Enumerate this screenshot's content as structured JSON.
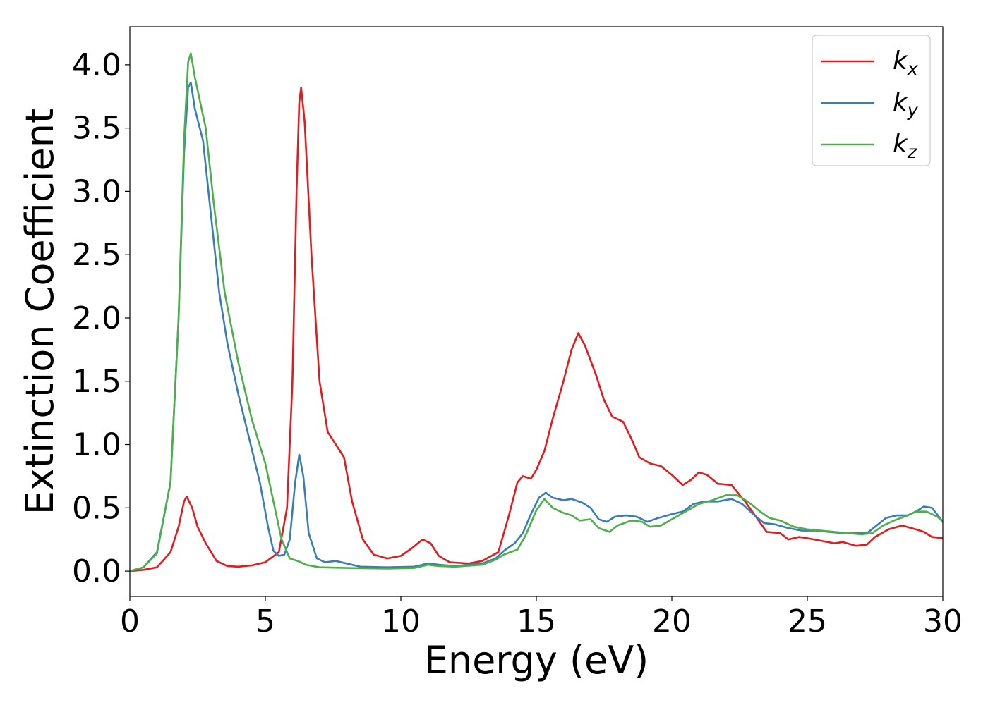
{
  "chart_data": {
    "type": "line",
    "title": "",
    "xlabel": "Energy (eV)",
    "ylabel": "Extinction Coefficient",
    "xlim": [
      0,
      30
    ],
    "ylim": [
      -0.2,
      4.3
    ],
    "xticks": [
      0,
      5,
      10,
      15,
      20,
      25,
      30
    ],
    "yticks": [
      0.0,
      0.5,
      1.0,
      1.5,
      2.0,
      2.5,
      3.0,
      3.5,
      4.0
    ],
    "xtick_labels": [
      "0",
      "5",
      "10",
      "15",
      "20",
      "25",
      "30"
    ],
    "ytick_labels": [
      "0.0",
      "0.5",
      "1.0",
      "1.5",
      "2.0",
      "2.5",
      "3.0",
      "3.5",
      "4.0"
    ],
    "grid": false,
    "legend_position": "top-right",
    "series": [
      {
        "name": "kx",
        "label_base": "k",
        "label_sub": "x",
        "color": "#e41a1c",
        "points": [
          [
            0,
            0
          ],
          [
            0.5,
            0.01
          ],
          [
            1.0,
            0.03
          ],
          [
            1.5,
            0.15
          ],
          [
            1.8,
            0.35
          ],
          [
            2.0,
            0.55
          ],
          [
            2.1,
            0.59
          ],
          [
            2.3,
            0.5
          ],
          [
            2.5,
            0.35
          ],
          [
            2.8,
            0.22
          ],
          [
            3.2,
            0.08
          ],
          [
            3.6,
            0.04
          ],
          [
            4.0,
            0.035
          ],
          [
            4.5,
            0.045
          ],
          [
            5.0,
            0.07
          ],
          [
            5.5,
            0.15
          ],
          [
            5.8,
            0.5
          ],
          [
            6.0,
            1.5
          ],
          [
            6.15,
            3.0
          ],
          [
            6.25,
            3.7
          ],
          [
            6.32,
            3.82
          ],
          [
            6.45,
            3.55
          ],
          [
            6.7,
            2.5
          ],
          [
            7.0,
            1.5
          ],
          [
            7.3,
            1.1
          ],
          [
            7.6,
            1.0
          ],
          [
            7.9,
            0.9
          ],
          [
            8.2,
            0.55
          ],
          [
            8.6,
            0.25
          ],
          [
            9.0,
            0.13
          ],
          [
            9.5,
            0.1
          ],
          [
            10.0,
            0.12
          ],
          [
            10.4,
            0.18
          ],
          [
            10.8,
            0.25
          ],
          [
            11.1,
            0.22
          ],
          [
            11.4,
            0.12
          ],
          [
            11.8,
            0.07
          ],
          [
            12.5,
            0.06
          ],
          [
            13.0,
            0.08
          ],
          [
            13.6,
            0.15
          ],
          [
            14.0,
            0.45
          ],
          [
            14.3,
            0.7
          ],
          [
            14.5,
            0.75
          ],
          [
            14.8,
            0.73
          ],
          [
            15.0,
            0.8
          ],
          [
            15.3,
            0.95
          ],
          [
            15.6,
            1.2
          ],
          [
            16.0,
            1.5
          ],
          [
            16.3,
            1.75
          ],
          [
            16.55,
            1.88
          ],
          [
            16.8,
            1.78
          ],
          [
            17.2,
            1.55
          ],
          [
            17.5,
            1.35
          ],
          [
            17.8,
            1.22
          ],
          [
            18.2,
            1.18
          ],
          [
            18.5,
            1.05
          ],
          [
            18.8,
            0.9
          ],
          [
            19.2,
            0.85
          ],
          [
            19.6,
            0.83
          ],
          [
            20.0,
            0.76
          ],
          [
            20.4,
            0.68
          ],
          [
            20.7,
            0.72
          ],
          [
            21.0,
            0.78
          ],
          [
            21.3,
            0.76
          ],
          [
            21.7,
            0.69
          ],
          [
            22.2,
            0.68
          ],
          [
            22.7,
            0.55
          ],
          [
            23.2,
            0.4
          ],
          [
            23.5,
            0.31
          ],
          [
            24.0,
            0.3
          ],
          [
            24.3,
            0.25
          ],
          [
            24.7,
            0.27
          ],
          [
            25.0,
            0.26
          ],
          [
            25.5,
            0.24
          ],
          [
            26.0,
            0.22
          ],
          [
            26.3,
            0.23
          ],
          [
            26.8,
            0.2
          ],
          [
            27.2,
            0.21
          ],
          [
            27.5,
            0.27
          ],
          [
            28.0,
            0.33
          ],
          [
            28.5,
            0.36
          ],
          [
            29.0,
            0.33
          ],
          [
            29.3,
            0.31
          ],
          [
            29.6,
            0.27
          ],
          [
            30.0,
            0.26
          ]
        ]
      },
      {
        "name": "ky",
        "label_base": "k",
        "label_sub": "y",
        "color": "#377eb8",
        "points": [
          [
            0,
            0
          ],
          [
            0.5,
            0.03
          ],
          [
            1.0,
            0.15
          ],
          [
            1.5,
            0.7
          ],
          [
            1.8,
            2.0
          ],
          [
            2.0,
            3.3
          ],
          [
            2.15,
            3.82
          ],
          [
            2.25,
            3.86
          ],
          [
            2.4,
            3.65
          ],
          [
            2.7,
            3.4
          ],
          [
            3.0,
            2.8
          ],
          [
            3.3,
            2.2
          ],
          [
            3.6,
            1.8
          ],
          [
            4.0,
            1.4
          ],
          [
            4.4,
            1.05
          ],
          [
            4.8,
            0.7
          ],
          [
            5.1,
            0.35
          ],
          [
            5.3,
            0.16
          ],
          [
            5.5,
            0.12
          ],
          [
            5.7,
            0.13
          ],
          [
            5.9,
            0.25
          ],
          [
            6.1,
            0.7
          ],
          [
            6.25,
            0.92
          ],
          [
            6.4,
            0.75
          ],
          [
            6.6,
            0.3
          ],
          [
            6.9,
            0.1
          ],
          [
            7.2,
            0.07
          ],
          [
            7.6,
            0.08
          ],
          [
            8.0,
            0.06
          ],
          [
            8.5,
            0.035
          ],
          [
            9.5,
            0.03
          ],
          [
            10.5,
            0.035
          ],
          [
            11.0,
            0.06
          ],
          [
            11.4,
            0.05
          ],
          [
            12.0,
            0.04
          ],
          [
            13.0,
            0.06
          ],
          [
            13.5,
            0.1
          ],
          [
            13.8,
            0.16
          ],
          [
            14.2,
            0.22
          ],
          [
            14.5,
            0.3
          ],
          [
            14.8,
            0.45
          ],
          [
            15.1,
            0.58
          ],
          [
            15.35,
            0.62
          ],
          [
            15.6,
            0.58
          ],
          [
            16.0,
            0.56
          ],
          [
            16.3,
            0.57
          ],
          [
            16.7,
            0.54
          ],
          [
            17.0,
            0.5
          ],
          [
            17.3,
            0.41
          ],
          [
            17.6,
            0.39
          ],
          [
            17.9,
            0.43
          ],
          [
            18.3,
            0.44
          ],
          [
            18.7,
            0.43
          ],
          [
            19.1,
            0.39
          ],
          [
            19.5,
            0.42
          ],
          [
            20.0,
            0.45
          ],
          [
            20.4,
            0.47
          ],
          [
            20.8,
            0.53
          ],
          [
            21.2,
            0.55
          ],
          [
            21.7,
            0.55
          ],
          [
            22.2,
            0.57
          ],
          [
            22.6,
            0.53
          ],
          [
            23.0,
            0.45
          ],
          [
            23.4,
            0.38
          ],
          [
            23.8,
            0.37
          ],
          [
            24.3,
            0.34
          ],
          [
            24.8,
            0.32
          ],
          [
            25.3,
            0.32
          ],
          [
            25.8,
            0.31
          ],
          [
            26.3,
            0.3
          ],
          [
            26.8,
            0.3
          ],
          [
            27.2,
            0.3
          ],
          [
            27.5,
            0.35
          ],
          [
            27.9,
            0.42
          ],
          [
            28.3,
            0.44
          ],
          [
            28.7,
            0.44
          ],
          [
            29.0,
            0.47
          ],
          [
            29.3,
            0.51
          ],
          [
            29.6,
            0.5
          ],
          [
            30.0,
            0.39
          ]
        ]
      },
      {
        "name": "kz",
        "label_base": "k",
        "label_sub": "z",
        "color": "#4daf4a",
        "points": [
          [
            0,
            0
          ],
          [
            0.5,
            0.03
          ],
          [
            1.0,
            0.14
          ],
          [
            1.5,
            0.7
          ],
          [
            1.8,
            2.0
          ],
          [
            2.0,
            3.4
          ],
          [
            2.15,
            4.02
          ],
          [
            2.25,
            4.09
          ],
          [
            2.4,
            3.9
          ],
          [
            2.8,
            3.5
          ],
          [
            3.1,
            2.9
          ],
          [
            3.5,
            2.2
          ],
          [
            4.0,
            1.65
          ],
          [
            4.5,
            1.2
          ],
          [
            5.0,
            0.85
          ],
          [
            5.3,
            0.55
          ],
          [
            5.6,
            0.25
          ],
          [
            5.9,
            0.1
          ],
          [
            6.2,
            0.08
          ],
          [
            6.5,
            0.05
          ],
          [
            7.0,
            0.03
          ],
          [
            8.0,
            0.025
          ],
          [
            9.5,
            0.02
          ],
          [
            10.5,
            0.025
          ],
          [
            11.0,
            0.05
          ],
          [
            11.4,
            0.04
          ],
          [
            12.0,
            0.035
          ],
          [
            13.0,
            0.05
          ],
          [
            13.5,
            0.09
          ],
          [
            13.8,
            0.13
          ],
          [
            14.3,
            0.17
          ],
          [
            14.6,
            0.28
          ],
          [
            15.0,
            0.48
          ],
          [
            15.3,
            0.57
          ],
          [
            15.6,
            0.5
          ],
          [
            16.0,
            0.46
          ],
          [
            16.3,
            0.44
          ],
          [
            16.6,
            0.4
          ],
          [
            17.0,
            0.41
          ],
          [
            17.3,
            0.34
          ],
          [
            17.7,
            0.31
          ],
          [
            18.0,
            0.36
          ],
          [
            18.5,
            0.4
          ],
          [
            18.9,
            0.39
          ],
          [
            19.2,
            0.35
          ],
          [
            19.6,
            0.36
          ],
          [
            20.0,
            0.41
          ],
          [
            20.5,
            0.47
          ],
          [
            21.0,
            0.53
          ],
          [
            21.5,
            0.56
          ],
          [
            22.0,
            0.6
          ],
          [
            22.4,
            0.6
          ],
          [
            22.8,
            0.55
          ],
          [
            23.2,
            0.48
          ],
          [
            23.6,
            0.42
          ],
          [
            24.0,
            0.4
          ],
          [
            24.5,
            0.35
          ],
          [
            25.0,
            0.33
          ],
          [
            25.5,
            0.32
          ],
          [
            26.0,
            0.31
          ],
          [
            26.5,
            0.3
          ],
          [
            27.0,
            0.29
          ],
          [
            27.4,
            0.3
          ],
          [
            27.8,
            0.36
          ],
          [
            28.2,
            0.4
          ],
          [
            28.7,
            0.44
          ],
          [
            29.0,
            0.47
          ],
          [
            29.4,
            0.47
          ],
          [
            29.8,
            0.43
          ],
          [
            30.0,
            0.39
          ]
        ]
      }
    ]
  }
}
